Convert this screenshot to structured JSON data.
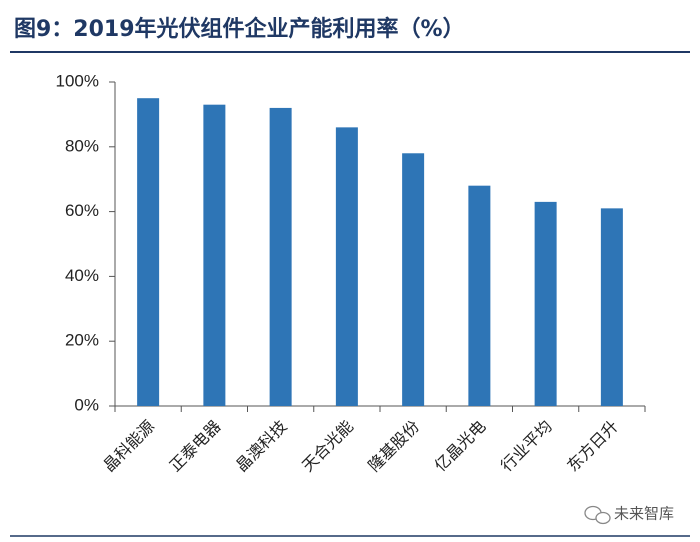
{
  "chart_data": {
    "type": "bar",
    "title": "图9：2019年光伏组件企业产能利用率（%）",
    "categories": [
      "晶科能源",
      "正泰电器",
      "晶澳科技",
      "天合光能",
      "隆基股份",
      "亿晶光电",
      "行业平均",
      "东方日升"
    ],
    "values": [
      95,
      93,
      92,
      86,
      78,
      68,
      63,
      61
    ],
    "color": "#2e75b6",
    "ylim": [
      0,
      100
    ],
    "yticks": [
      {
        "value": 0,
        "label": "0%"
      },
      {
        "value": 20,
        "label": "20%"
      },
      {
        "value": 40,
        "label": "40%"
      },
      {
        "value": 60,
        "label": "60%"
      },
      {
        "value": 80,
        "label": "80%"
      },
      {
        "value": 100,
        "label": "100%"
      }
    ],
    "grid": false,
    "watermark": "未来智库"
  }
}
